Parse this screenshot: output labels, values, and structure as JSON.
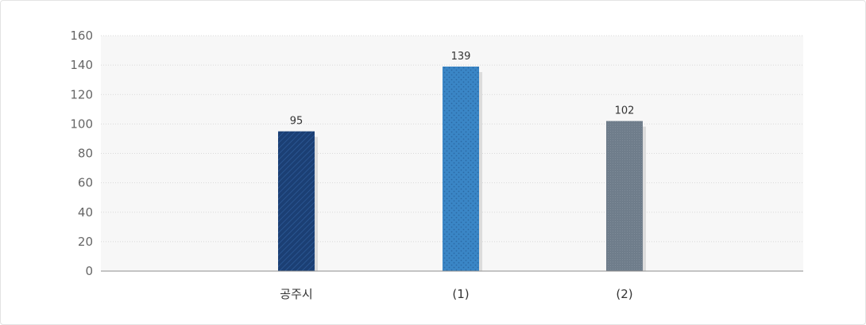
{
  "chart_data": {
    "type": "bar",
    "categories": [
      "공주시",
      "(1)",
      "(2)"
    ],
    "values": [
      95,
      139,
      102
    ],
    "value_labels": [
      "95",
      "139",
      "102"
    ],
    "ylim": [
      0,
      160
    ],
    "yticks": [
      0,
      20,
      40,
      60,
      80,
      100,
      120,
      140,
      160
    ],
    "ytick_labels": [
      "0",
      "20",
      "40",
      "60",
      "80",
      "100",
      "120",
      "140",
      "160"
    ],
    "grid": true,
    "legend": "none",
    "bar_colors": [
      "#1b3f74",
      "#3a86c6",
      "#6f7d8b"
    ],
    "bar_patterns": [
      "diagonal-hatch",
      "dots",
      "grid"
    ],
    "shadow_color": "#dcdcdc",
    "plot_background": "#f7f7f7",
    "grid_color": "#d9d9d9",
    "axis_color": "#8c8c8c"
  }
}
